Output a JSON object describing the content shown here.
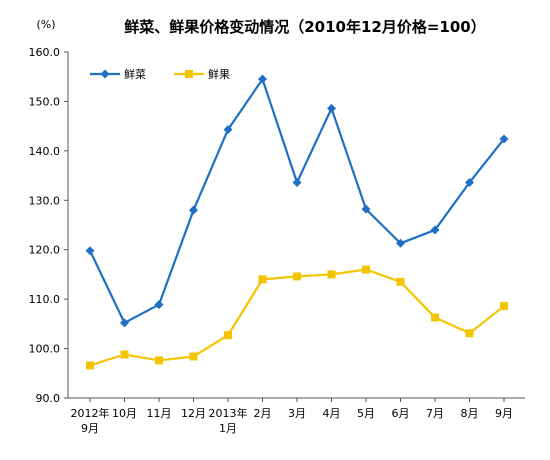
{
  "chart_data": {
    "type": "line",
    "title": "鲜菜、鲜果价格变动情况（2010年12月价格=100）",
    "ylabel": "(%)",
    "ylim": [
      90,
      160
    ],
    "yticks": [
      "90.0",
      "100.0",
      "110.0",
      "120.0",
      "130.0",
      "140.0",
      "150.0",
      "160.0"
    ],
    "categories": [
      [
        "2012年",
        "9月"
      ],
      [
        "10月"
      ],
      [
        "11月"
      ],
      [
        "12月"
      ],
      [
        "2013年",
        "1月"
      ],
      [
        "2月"
      ],
      [
        "3月"
      ],
      [
        "4月"
      ],
      [
        "5月"
      ],
      [
        "6月"
      ],
      [
        "7月"
      ],
      [
        "8月"
      ],
      [
        "9月"
      ]
    ],
    "grid": false,
    "legend_position": "top-left",
    "series": [
      {
        "name": "鲜菜",
        "color": "#1f6fc5",
        "marker": "diamond",
        "values": [
          119.8,
          105.2,
          108.9,
          128.0,
          144.3,
          154.5,
          133.6,
          148.6,
          128.2,
          121.3,
          124.0,
          133.6,
          142.4
        ]
      },
      {
        "name": "鲜果",
        "color": "#f5c400",
        "marker": "square",
        "values": [
          96.6,
          98.8,
          97.6,
          98.4,
          102.7,
          114.0,
          114.6,
          115.0,
          116.0,
          113.5,
          106.3,
          103.1,
          108.6
        ]
      }
    ]
  }
}
